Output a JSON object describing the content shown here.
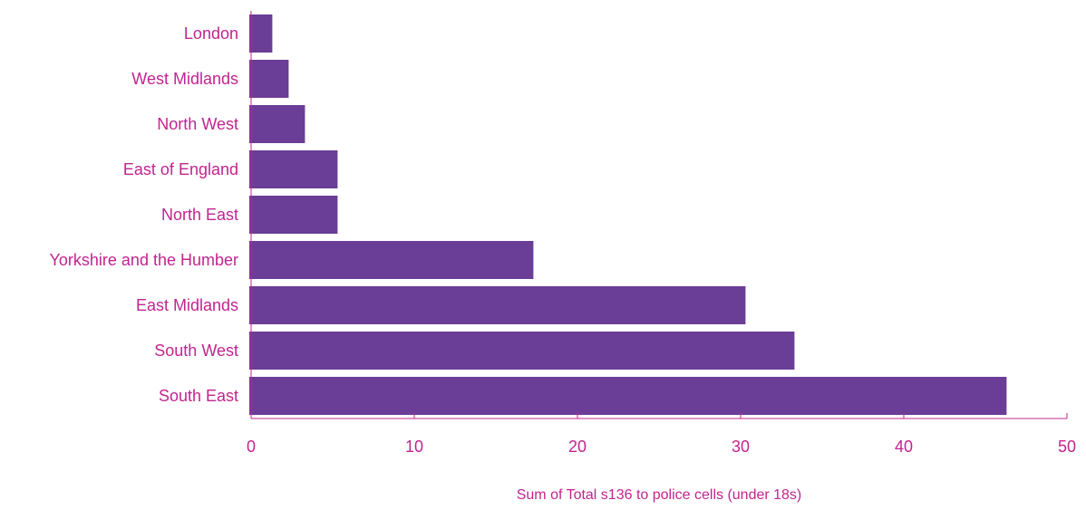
{
  "chart_data": {
    "type": "bar",
    "orientation": "horizontal",
    "categories": [
      "London",
      "West Midlands",
      "North West",
      "East of England",
      "North East",
      "Yorkshire and the Humber",
      "East Midlands",
      "South West",
      "South East"
    ],
    "values": [
      1.3,
      2.3,
      3.3,
      5.3,
      5.3,
      17.3,
      30.3,
      33.3,
      46.3
    ],
    "xlabel": "Sum of Total s136 to police cells (under 18s)",
    "ylabel": "",
    "xlim": [
      0,
      50
    ],
    "xticks": [
      "0",
      "10",
      "20",
      "30",
      "40",
      "50"
    ],
    "grid": false,
    "legend": "none",
    "colors": {
      "bar": "#6a3d96",
      "text": "#c2248f",
      "axis": "#c2248f"
    }
  }
}
